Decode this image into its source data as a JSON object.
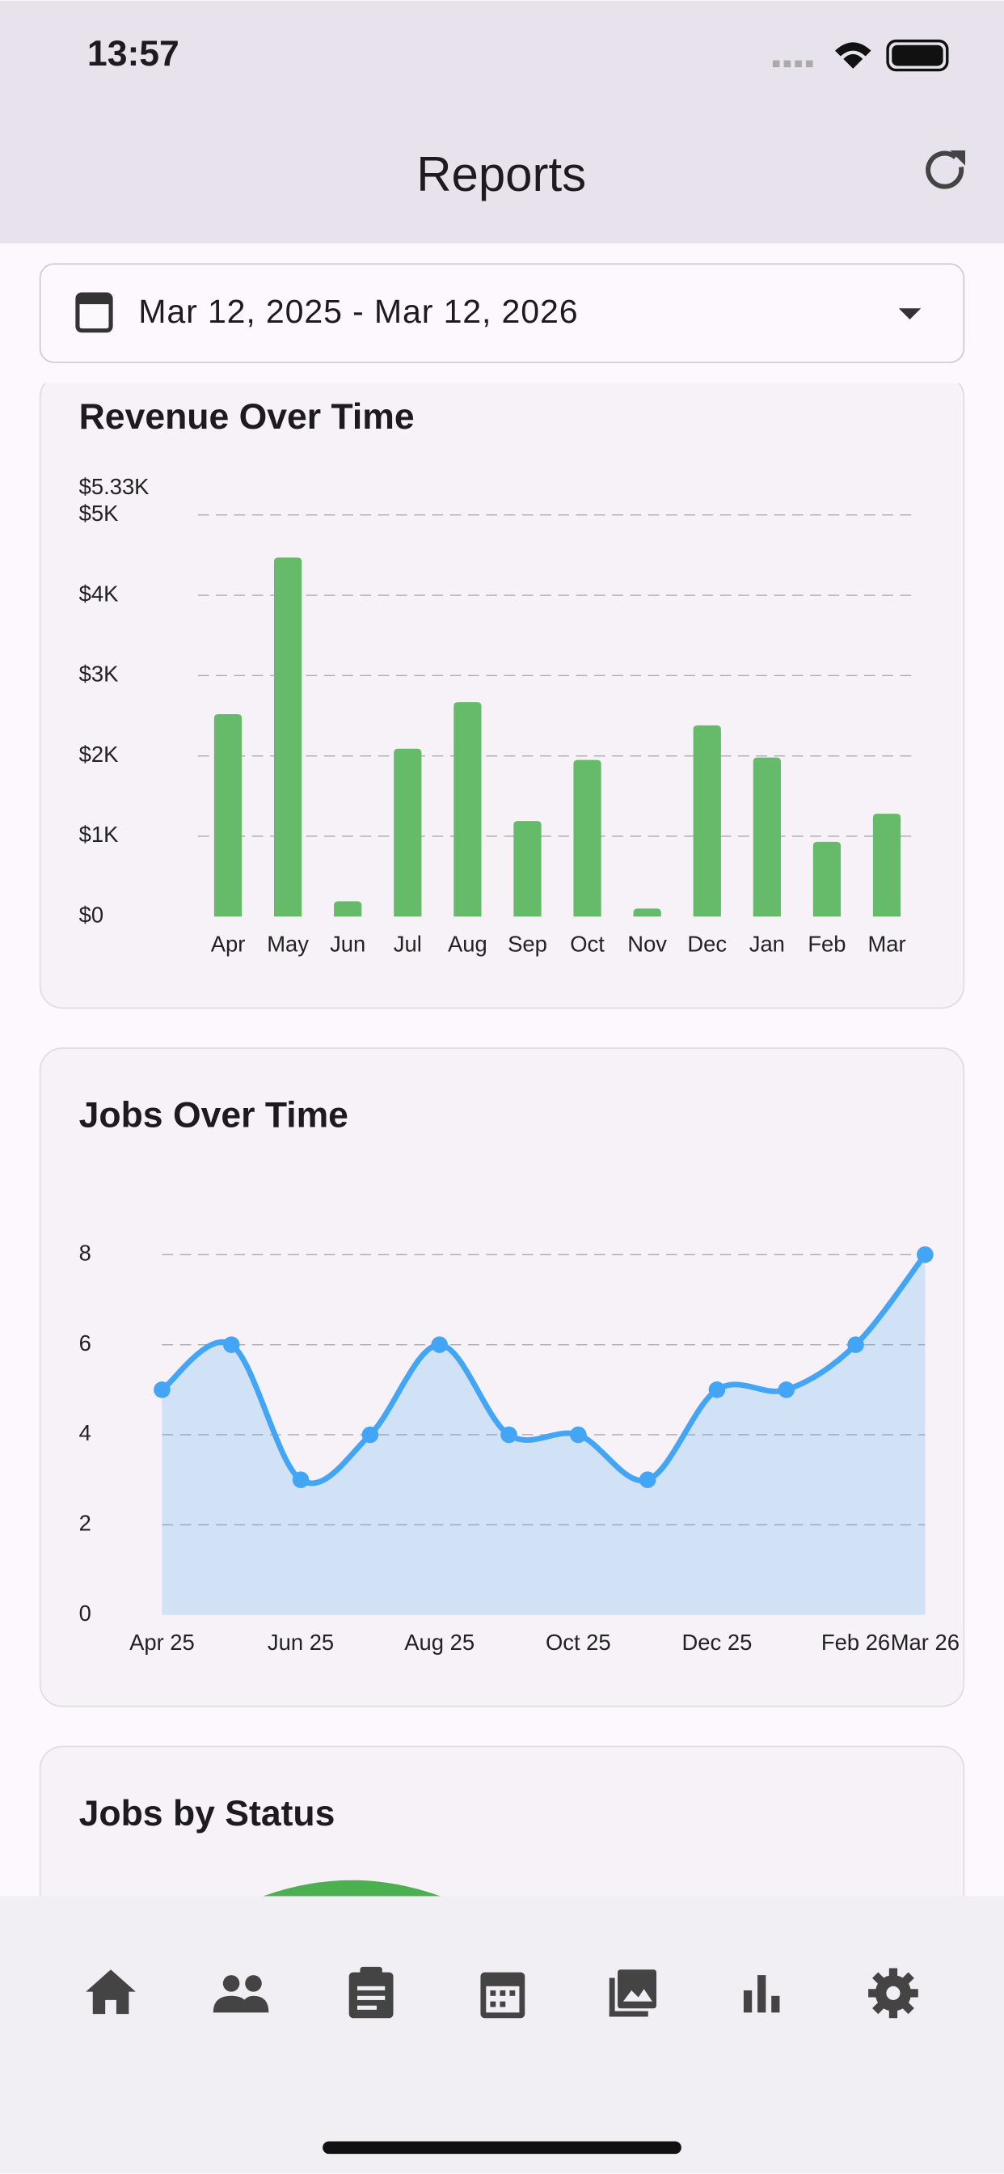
{
  "status_bar": {
    "time": "13:57"
  },
  "header": {
    "title": "Reports"
  },
  "date_range": "Mar 12, 2025 - Mar 12, 2026",
  "chart_data": [
    {
      "type": "bar",
      "title": "Revenue Over Time",
      "categories": [
        "Apr",
        "May",
        "Jun",
        "Jul",
        "Aug",
        "Sep",
        "Oct",
        "Nov",
        "Dec",
        "Jan",
        "Feb",
        "Mar"
      ],
      "values": [
        2520,
        4470,
        190,
        2090,
        2670,
        1190,
        1950,
        100,
        2380,
        1980,
        930,
        1280
      ],
      "color": "#66bb6a",
      "ylim": [
        0,
        5330
      ],
      "yticks": [
        {
          "value": 0,
          "label": "$0"
        },
        {
          "value": 1000,
          "label": "$1K"
        },
        {
          "value": 2000,
          "label": "$2K"
        },
        {
          "value": 3000,
          "label": "$3K"
        },
        {
          "value": 4000,
          "label": "$4K"
        },
        {
          "value": 5000,
          "label": "$5K"
        },
        {
          "value": 5330,
          "label": "$5.33K"
        }
      ],
      "grid": true
    },
    {
      "type": "area",
      "title": "Jobs Over Time",
      "categories": [
        "Apr 25",
        null,
        "Jun 25",
        null,
        "Aug 25",
        null,
        "Oct 25",
        null,
        "Dec 25",
        null,
        "Feb 26",
        "Mar 26"
      ],
      "values": [
        5,
        6,
        3,
        4,
        6,
        4,
        4,
        3,
        5,
        5,
        6,
        8
      ],
      "color": "#42a5f5",
      "ylim": [
        0,
        8
      ],
      "yticks": [
        0,
        2,
        4,
        6,
        8
      ],
      "grid": true
    }
  ],
  "next_section": {
    "title": "Jobs by Status"
  }
}
